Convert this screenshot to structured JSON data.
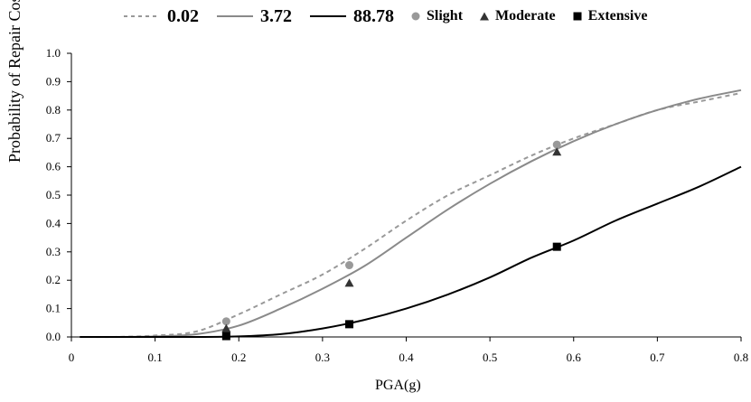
{
  "chart_data": {
    "type": "line",
    "xlabel": "PGA(g)",
    "ylabel": "Probability of Repair Cost",
    "xlim": [
      0,
      0.8
    ],
    "ylim": [
      0,
      1.0
    ],
    "x_ticks": [
      "0",
      "0.1",
      "0.2",
      "0.3",
      "0.4",
      "0.5",
      "0.6",
      "0.7",
      "0.8"
    ],
    "y_ticks": [
      "0.0",
      "0.1",
      "0.2",
      "0.3",
      "0.4",
      "0.5",
      "0.6",
      "0.7",
      "0.8",
      "0.9",
      "1.0"
    ],
    "grid": false,
    "legend_position": "top",
    "curve_x": [
      0.01,
      0.05,
      0.1,
      0.15,
      0.2,
      0.25,
      0.3,
      0.35,
      0.4,
      0.45,
      0.5,
      0.55,
      0.6,
      0.65,
      0.7,
      0.75,
      0.8
    ],
    "series": [
      {
        "name": "0.02",
        "style": "dashed",
        "color": "#999999",
        "values": [
          0.0,
          0.0,
          0.005,
          0.02,
          0.08,
          0.15,
          0.22,
          0.31,
          0.41,
          0.5,
          0.57,
          0.64,
          0.7,
          0.75,
          0.8,
          0.83,
          0.86
        ]
      },
      {
        "name": "3.72",
        "style": "solid",
        "color": "#8a8a8a",
        "values": [
          0.0,
          0.0,
          0.002,
          0.01,
          0.04,
          0.1,
          0.17,
          0.25,
          0.35,
          0.45,
          0.54,
          0.62,
          0.69,
          0.75,
          0.8,
          0.84,
          0.87
        ]
      },
      {
        "name": "88.78",
        "style": "solid",
        "color": "#000000",
        "values": [
          0.0,
          0.0,
          0.0,
          0.0,
          0.002,
          0.01,
          0.03,
          0.06,
          0.1,
          0.15,
          0.21,
          0.28,
          0.34,
          0.41,
          0.47,
          0.53,
          0.6
        ]
      }
    ],
    "markers": [
      {
        "name": "Slight",
        "shape": "circle",
        "color": "#999999",
        "x": [
          0.185,
          0.332,
          0.58
        ],
        "y": [
          0.055,
          0.253,
          0.678
        ]
      },
      {
        "name": "Moderate",
        "shape": "triangle",
        "color": "#333333",
        "x": [
          0.185,
          0.332,
          0.58
        ],
        "y": [
          0.03,
          0.19,
          0.652
        ]
      },
      {
        "name": "Extensive",
        "shape": "square",
        "color": "#000000",
        "x": [
          0.185,
          0.332,
          0.58
        ],
        "y": [
          0.003,
          0.045,
          0.318
        ]
      }
    ]
  }
}
